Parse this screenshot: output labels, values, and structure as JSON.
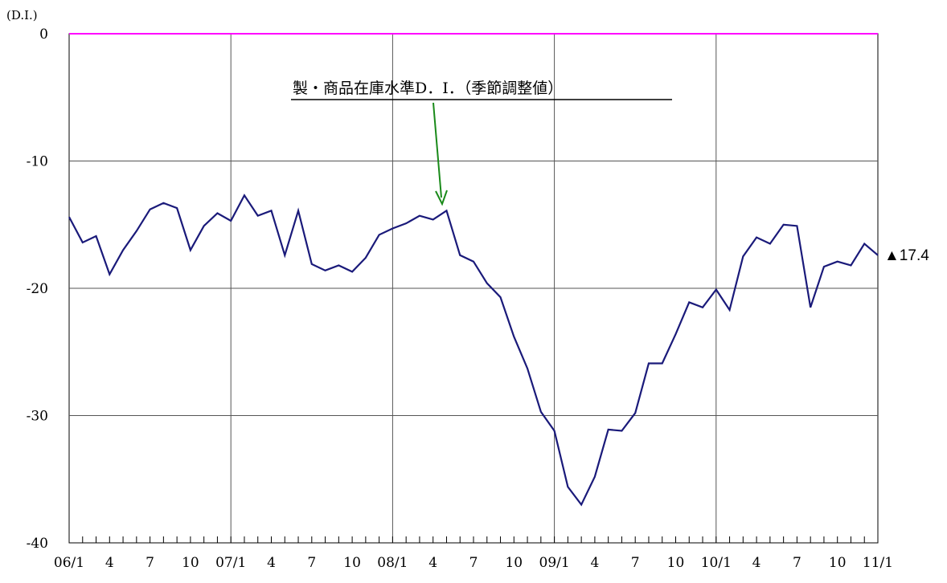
{
  "chart_data": {
    "type": "line",
    "y_axis_label": "(D.I.)",
    "categories": [
      "06/1",
      null,
      null,
      "4",
      null,
      null,
      "7",
      null,
      null,
      "10",
      null,
      null,
      "07/1",
      null,
      null,
      "4",
      null,
      null,
      "7",
      null,
      null,
      "10",
      null,
      null,
      "08/1",
      null,
      null,
      "4",
      null,
      null,
      "7",
      null,
      null,
      "10",
      null,
      null,
      "09/1",
      null,
      null,
      "4",
      null,
      null,
      "7",
      null,
      null,
      "10",
      null,
      null,
      "10/1",
      null,
      null,
      "4",
      null,
      null,
      "7",
      null,
      null,
      "10",
      null,
      null,
      "11/1"
    ],
    "series": [
      {
        "name": "製・商品在庫水準D．I．（季節調整値）",
        "color": "#1a1a7a",
        "values": [
          -14.4,
          -16.4,
          -15.9,
          -18.9,
          -17.0,
          -15.5,
          -13.8,
          -13.3,
          -13.7,
          -17.0,
          -15.1,
          -14.1,
          -14.7,
          -12.7,
          -14.3,
          -13.9,
          -17.4,
          -13.9,
          -18.1,
          -18.6,
          -18.2,
          -18.7,
          -17.6,
          -15.8,
          -15.3,
          -14.9,
          -14.3,
          -14.6,
          -13.9,
          -17.4,
          -17.9,
          -19.6,
          -20.7,
          -23.8,
          -26.3,
          -29.7,
          -31.2,
          -35.6,
          -37.0,
          -34.8,
          -31.1,
          -31.2,
          -29.8,
          -25.9,
          -25.9,
          -23.6,
          -21.1,
          -21.5,
          -20.1,
          -21.7,
          -17.5,
          -16.0,
          -16.5,
          -15.0,
          -15.1,
          -21.5,
          -18.3,
          -17.9,
          -18.2,
          -16.5,
          -17.4
        ]
      }
    ],
    "last_value_label": "▲17.4",
    "ylim": [
      -40,
      0
    ],
    "yticks": [
      0,
      -10,
      -20,
      -30,
      -40
    ],
    "zero_line_color": "#ff00ff",
    "grid": true
  }
}
